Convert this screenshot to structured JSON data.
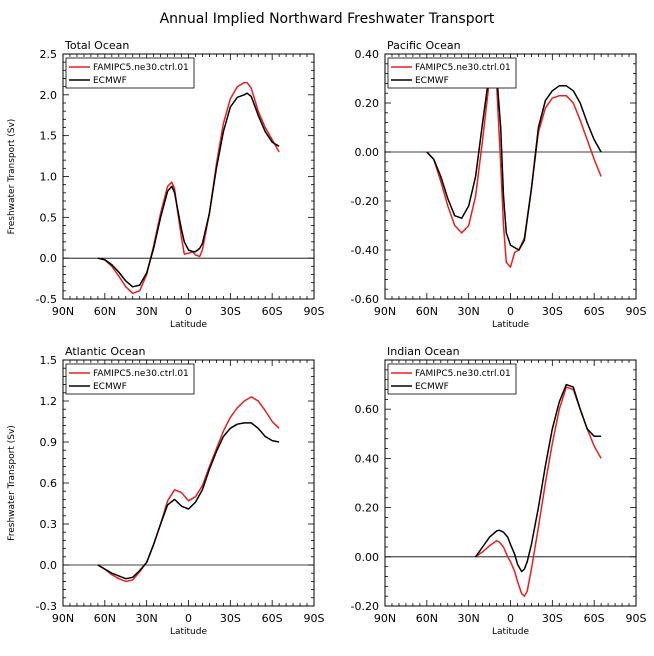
{
  "figure_title": "Annual Implied Northward Freshwater Transport",
  "chart_data": [
    {
      "type": "line",
      "title": "Total Ocean",
      "xlabel": "Latitude",
      "ylabel": "Freshwater Transport (Sv)",
      "xlim": [
        -90,
        90
      ],
      "xticks": [
        -90,
        -60,
        -30,
        0,
        30,
        60,
        90
      ],
      "xticklabels": [
        "90N",
        "60N",
        "30N",
        "0",
        "30S",
        "60S",
        "90S"
      ],
      "ylim": [
        -0.5,
        2.5
      ],
      "yticks": [
        -0.5,
        0,
        0.5,
        1,
        1.5,
        2,
        2.5
      ],
      "yticklabels": [
        "-0.5",
        "0.0",
        "0.5",
        "1.0",
        "1.5",
        "2.0",
        "2.5"
      ],
      "zero_line": true,
      "legend": [
        "FAMIPC5.ne30.ctrl.01",
        "ECMWF"
      ],
      "series": [
        {
          "name": "FAMIPC5.ne30.ctrl.01",
          "color": "#e8201c",
          "x": [
            -65,
            -60,
            -55,
            -50,
            -45,
            -40,
            -35,
            -30,
            -25,
            -20,
            -15,
            -12,
            -10,
            -8,
            -5,
            -3,
            0,
            3,
            5,
            8,
            10,
            15,
            20,
            25,
            30,
            35,
            40,
            42,
            45,
            50,
            55,
            60,
            65
          ],
          "y": [
            0.0,
            -0.02,
            -0.1,
            -0.22,
            -0.35,
            -0.43,
            -0.4,
            -0.2,
            0.15,
            0.55,
            0.88,
            0.93,
            0.85,
            0.6,
            0.25,
            0.05,
            0.06,
            0.08,
            0.04,
            0.02,
            0.1,
            0.55,
            1.15,
            1.65,
            1.95,
            2.1,
            2.15,
            2.15,
            2.08,
            1.8,
            1.6,
            1.45,
            1.3
          ]
        },
        {
          "name": "ECMWF",
          "color": "#000000",
          "x": [
            -65,
            -60,
            -55,
            -50,
            -45,
            -40,
            -35,
            -30,
            -25,
            -20,
            -15,
            -12,
            -10,
            -8,
            -5,
            -3,
            0,
            3,
            5,
            8,
            10,
            15,
            20,
            25,
            30,
            35,
            40,
            42,
            45,
            50,
            55,
            60,
            65
          ],
          "y": [
            0.0,
            -0.02,
            -0.08,
            -0.17,
            -0.28,
            -0.35,
            -0.33,
            -0.18,
            0.12,
            0.5,
            0.82,
            0.88,
            0.8,
            0.62,
            0.35,
            0.2,
            0.1,
            0.08,
            0.08,
            0.12,
            0.18,
            0.55,
            1.1,
            1.55,
            1.85,
            1.97,
            2.0,
            2.02,
            1.98,
            1.75,
            1.55,
            1.42,
            1.37
          ]
        }
      ]
    },
    {
      "type": "line",
      "title": "Pacific Ocean",
      "xlabel": "Latitude",
      "ylabel": "",
      "xlim": [
        -90,
        90
      ],
      "xticks": [
        -90,
        -60,
        -30,
        0,
        30,
        60,
        90
      ],
      "xticklabels": [
        "90N",
        "60N",
        "30N",
        "0",
        "30S",
        "60S",
        "90S"
      ],
      "ylim": [
        -0.6,
        0.4
      ],
      "yticks": [
        -0.6,
        -0.4,
        -0.2,
        0,
        0.2,
        0.4
      ],
      "yticklabels": [
        "-0.60",
        "-0.40",
        "-0.20",
        "0.00",
        "0.20",
        "0.40"
      ],
      "zero_line": true,
      "legend": [
        "FAMIPC5.ne30.ctrl.01",
        "ECMWF"
      ],
      "series": [
        {
          "name": "FAMIPC5.ne30.ctrl.01",
          "color": "#e8201c",
          "x": [
            -60,
            -55,
            -50,
            -45,
            -40,
            -35,
            -30,
            -25,
            -20,
            -15,
            -13,
            -10,
            -7,
            -5,
            -3,
            0,
            3,
            6,
            10,
            15,
            20,
            25,
            30,
            35,
            40,
            45,
            50,
            55,
            60,
            65
          ],
          "y": [
            0.0,
            -0.03,
            -0.12,
            -0.22,
            -0.3,
            -0.33,
            -0.3,
            -0.18,
            0.05,
            0.3,
            0.37,
            0.28,
            -0.05,
            -0.3,
            -0.45,
            -0.47,
            -0.41,
            -0.4,
            -0.35,
            -0.15,
            0.08,
            0.18,
            0.22,
            0.23,
            0.23,
            0.2,
            0.13,
            0.05,
            -0.03,
            -0.1
          ]
        },
        {
          "name": "ECMWF",
          "color": "#000000",
          "x": [
            -60,
            -55,
            -50,
            -45,
            -40,
            -35,
            -30,
            -25,
            -20,
            -15,
            -13,
            -10,
            -7,
            -5,
            -3,
            0,
            3,
            6,
            10,
            15,
            20,
            25,
            30,
            35,
            40,
            45,
            50,
            55,
            60,
            65
          ],
          "y": [
            0.0,
            -0.03,
            -0.1,
            -0.19,
            -0.26,
            -0.27,
            -0.22,
            -0.1,
            0.12,
            0.33,
            0.36,
            0.32,
            0.1,
            -0.18,
            -0.33,
            -0.38,
            -0.39,
            -0.4,
            -0.36,
            -0.15,
            0.1,
            0.21,
            0.25,
            0.27,
            0.27,
            0.25,
            0.2,
            0.12,
            0.05,
            0.0
          ]
        }
      ]
    },
    {
      "type": "line",
      "title": "Atlantic Ocean",
      "xlabel": "Latitude",
      "ylabel": "Freshwater Transport (Sv)",
      "xlim": [
        -90,
        90
      ],
      "xticks": [
        -90,
        -60,
        -30,
        0,
        30,
        60,
        90
      ],
      "xticklabels": [
        "90N",
        "60N",
        "30N",
        "0",
        "30S",
        "60S",
        "90S"
      ],
      "ylim": [
        -0.3,
        1.5
      ],
      "yticks": [
        -0.3,
        0,
        0.3,
        0.6,
        0.9,
        1.2,
        1.5
      ],
      "yticklabels": [
        "-0.3",
        "0.0",
        "0.3",
        "0.6",
        "0.9",
        "1.2",
        "1.5"
      ],
      "zero_line": true,
      "legend": [
        "FAMIPC5.ne30.ctrl.01",
        "ECMWF"
      ],
      "series": [
        {
          "name": "FAMIPC5.ne30.ctrl.01",
          "color": "#e8201c",
          "x": [
            -65,
            -60,
            -55,
            -50,
            -45,
            -40,
            -35,
            -30,
            -25,
            -20,
            -15,
            -10,
            -5,
            0,
            5,
            10,
            15,
            20,
            25,
            30,
            35,
            40,
            45,
            50,
            55,
            60,
            65
          ],
          "y": [
            0.0,
            -0.03,
            -0.07,
            -0.1,
            -0.12,
            -0.11,
            -0.05,
            0.02,
            0.15,
            0.3,
            0.47,
            0.55,
            0.53,
            0.47,
            0.5,
            0.58,
            0.72,
            0.85,
            0.98,
            1.08,
            1.15,
            1.2,
            1.23,
            1.2,
            1.13,
            1.05,
            1.0
          ]
        },
        {
          "name": "ECMWF",
          "color": "#000000",
          "x": [
            -65,
            -60,
            -55,
            -50,
            -45,
            -40,
            -35,
            -30,
            -25,
            -20,
            -15,
            -10,
            -5,
            0,
            5,
            10,
            15,
            20,
            25,
            30,
            35,
            40,
            45,
            50,
            55,
            60,
            65
          ],
          "y": [
            0.0,
            -0.03,
            -0.06,
            -0.08,
            -0.1,
            -0.09,
            -0.04,
            0.02,
            0.15,
            0.3,
            0.44,
            0.48,
            0.43,
            0.41,
            0.46,
            0.55,
            0.7,
            0.83,
            0.94,
            1.0,
            1.03,
            1.04,
            1.04,
            1.0,
            0.94,
            0.91,
            0.9
          ]
        }
      ]
    },
    {
      "type": "line",
      "title": "Indian Ocean",
      "xlabel": "Latitude",
      "ylabel": "",
      "xlim": [
        -90,
        90
      ],
      "xticks": [
        -90,
        -60,
        -30,
        0,
        30,
        60,
        90
      ],
      "xticklabels": [
        "90N",
        "60N",
        "30N",
        "0",
        "30S",
        "60S",
        "90S"
      ],
      "ylim": [
        -0.2,
        0.8
      ],
      "yticks": [
        -0.2,
        0,
        0.2,
        0.4,
        0.6
      ],
      "yticklabels": [
        "-0.20",
        "0.00",
        "0.20",
        "0.40",
        "0.60"
      ],
      "zero_line": true,
      "legend": [
        "FAMIPC5.ne30.ctrl.01",
        "ECMWF"
      ],
      "series": [
        {
          "name": "FAMIPC5.ne30.ctrl.01",
          "color": "#e8201c",
          "x": [
            -25,
            -20,
            -15,
            -10,
            -8,
            -5,
            -2,
            0,
            3,
            5,
            8,
            10,
            12,
            15,
            20,
            25,
            30,
            35,
            40,
            45,
            50,
            55,
            60,
            65
          ],
          "y": [
            0.0,
            0.02,
            0.045,
            0.065,
            0.06,
            0.04,
            0.0,
            -0.02,
            -0.06,
            -0.1,
            -0.15,
            -0.16,
            -0.14,
            -0.05,
            0.12,
            0.3,
            0.46,
            0.6,
            0.69,
            0.68,
            0.6,
            0.52,
            0.45,
            0.4
          ]
        },
        {
          "name": "ECMWF",
          "color": "#000000",
          "x": [
            -25,
            -20,
            -15,
            -10,
            -8,
            -5,
            -2,
            0,
            3,
            5,
            8,
            10,
            12,
            15,
            20,
            25,
            30,
            35,
            40,
            45,
            50,
            55,
            60,
            65
          ],
          "y": [
            0.0,
            0.04,
            0.08,
            0.105,
            0.108,
            0.1,
            0.08,
            0.05,
            0.01,
            -0.03,
            -0.06,
            -0.05,
            -0.02,
            0.05,
            0.2,
            0.37,
            0.52,
            0.63,
            0.7,
            0.69,
            0.6,
            0.52,
            0.49,
            0.49
          ]
        }
      ]
    }
  ]
}
